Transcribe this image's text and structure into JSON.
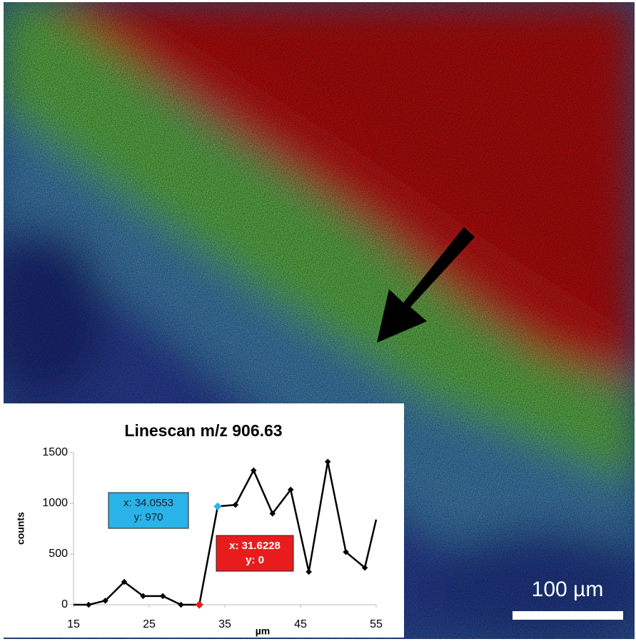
{
  "chart_data": {
    "type": "line",
    "title": "Linescan m/z 906.63",
    "x_label": "µm",
    "y_label": "counts",
    "x": [
      15,
      17,
      19.2,
      21.7,
      24.2,
      26.8,
      29.2,
      31.6228,
      34.0553,
      36.4,
      38.8,
      41.3,
      43.7,
      46.1,
      48.6,
      51.0,
      53.5,
      55
    ],
    "series": [
      {
        "color": "#000000",
        "values": [
          0,
          0,
          40,
          225,
          85,
          85,
          0,
          0,
          970,
          985,
          1325,
          900,
          1135,
          325,
          1410,
          520,
          365,
          840
        ]
      }
    ],
    "xlim": [
      15,
      55
    ],
    "ylim": [
      0,
      1500
    ],
    "xticks": [
      15,
      25,
      35,
      45,
      55
    ],
    "yticks": [
      0,
      500,
      1000,
      1500
    ],
    "grid": false,
    "annotations": [
      {
        "lines": [
          "x: 34.0553",
          "y: 970"
        ],
        "x": 34.0553,
        "y": 970,
        "color": "#2ab3e8"
      },
      {
        "lines": [
          "x: 31.6228",
          "y: 0"
        ],
        "x": 31.6228,
        "y": 0,
        "color": "#e81c1c"
      }
    ],
    "scale_bar": "100 µm"
  }
}
